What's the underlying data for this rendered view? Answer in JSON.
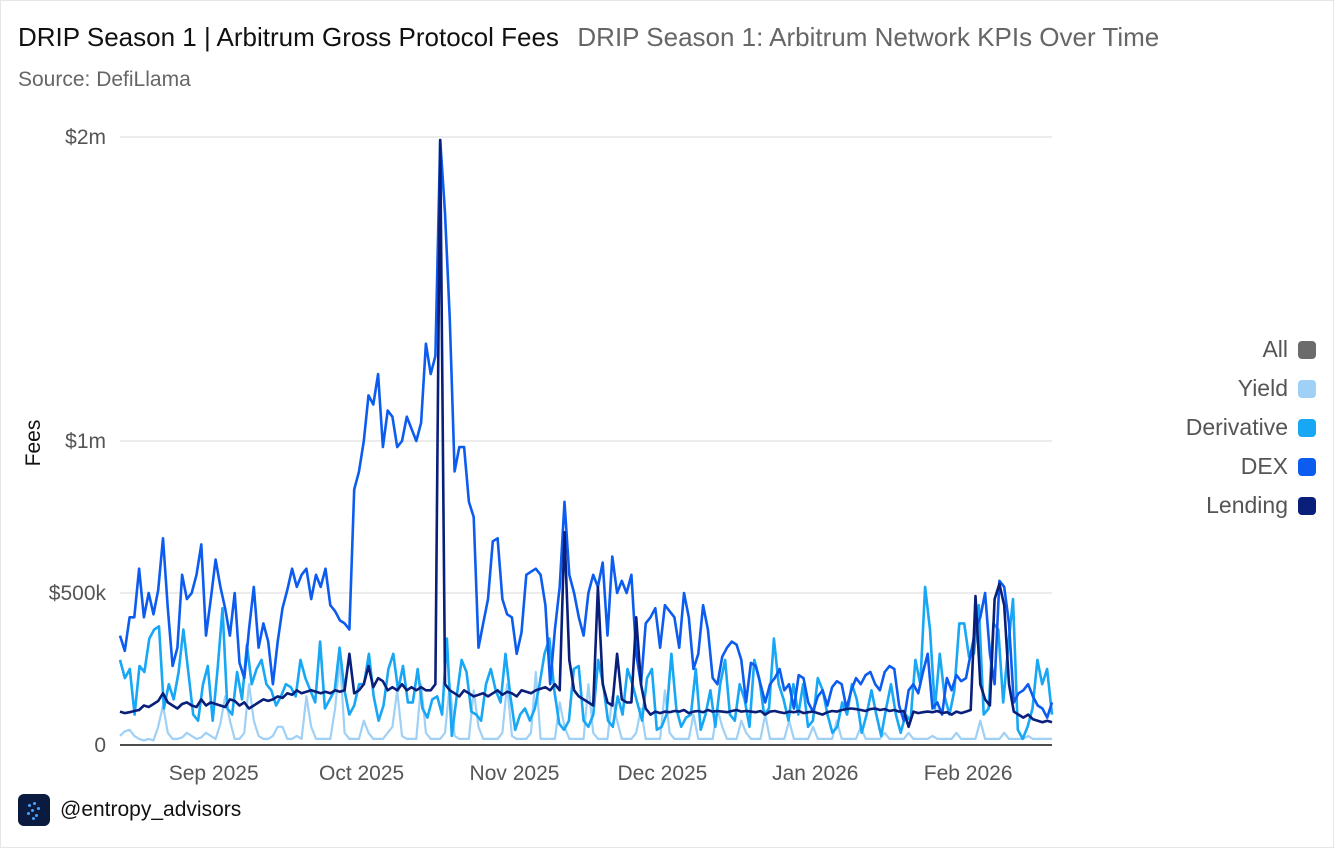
{
  "header": {
    "title": "DRIP Season 1 | Arbitrum Gross Protocol Fees",
    "subtitle": "DRIP Season 1: Arbitrum Network KPIs Over Time",
    "source": "Source: DefiLlama"
  },
  "footer": {
    "handle": "@entropy_advisors"
  },
  "colors": {
    "All": "#6b6b6b",
    "Yield": "#9fd0f5",
    "Derivative": "#17a7f5",
    "DEX": "#0d5cf0",
    "Lending": "#0a1f7a"
  },
  "chart_data": {
    "type": "line",
    "title": "DRIP Season 1 | Arbitrum Gross Protocol Fees",
    "xlabel": "",
    "ylabel": "Fees",
    "ylim": [
      0,
      2000000
    ],
    "yticks": [
      0,
      500000,
      1000000,
      2000000
    ],
    "ytick_labels": [
      "0",
      "$500k",
      "$1m",
      "$2m"
    ],
    "xticks": [
      "Sep 2025",
      "Oct 2025",
      "Nov 2025",
      "Dec 2025",
      "Jan 2026",
      "Feb 2026"
    ],
    "date_range": [
      "2025-08-13",
      "2026-02-18"
    ],
    "legend": [
      "All",
      "Yield",
      "Derivative",
      "DEX",
      "Lending"
    ],
    "legend_position": "right",
    "series": [
      {
        "name": "All",
        "values": []
      },
      {
        "name": "DEX",
        "values": [
          360000,
          310000,
          420000,
          420000,
          580000,
          420000,
          500000,
          430000,
          510000,
          680000,
          450000,
          260000,
          320000,
          560000,
          480000,
          500000,
          560000,
          660000,
          360000,
          480000,
          610000,
          520000,
          450000,
          360000,
          500000,
          270000,
          220000,
          380000,
          520000,
          320000,
          400000,
          340000,
          200000,
          340000,
          450000,
          510000,
          580000,
          520000,
          560000,
          580000,
          480000,
          560000,
          520000,
          580000,
          460000,
          440000,
          410000,
          400000,
          380000,
          840000,
          900000,
          1000000,
          1150000,
          1120000,
          1220000,
          980000,
          1100000,
          1080000,
          980000,
          1000000,
          1080000,
          1040000,
          1000000,
          1060000,
          1320000,
          1220000,
          1280000,
          2000000,
          1750000,
          1400000,
          900000,
          980000,
          980000,
          800000,
          750000,
          320000,
          400000,
          480000,
          670000,
          680000,
          480000,
          430000,
          420000,
          300000,
          370000,
          560000,
          570000,
          580000,
          560000,
          460000,
          200000,
          380000,
          520000,
          800000,
          560000,
          500000,
          420000,
          360000,
          500000,
          560000,
          520000,
          600000,
          360000,
          620000,
          500000,
          540000,
          500000,
          560000,
          300000,
          200000,
          400000,
          420000,
          450000,
          320000,
          460000,
          440000,
          420000,
          320000,
          500000,
          420000,
          250000,
          300000,
          460000,
          380000,
          220000,
          200000,
          290000,
          320000,
          340000,
          330000,
          280000,
          140000,
          270000,
          260000,
          200000,
          140000,
          200000,
          220000,
          250000,
          180000,
          200000,
          120000,
          230000,
          220000,
          140000,
          110000,
          160000,
          180000,
          130000,
          190000,
          210000,
          200000,
          120000,
          180000,
          220000,
          200000,
          230000,
          240000,
          200000,
          180000,
          240000,
          260000,
          250000,
          130000,
          80000,
          180000,
          200000,
          170000,
          240000,
          300000,
          120000,
          140000,
          100000,
          220000,
          180000,
          230000,
          210000,
          220000,
          300000,
          380000,
          420000,
          500000,
          300000,
          200000,
          540000,
          520000,
          400000,
          140000,
          170000,
          180000,
          200000,
          160000,
          130000,
          120000,
          90000,
          140000
        ]
      },
      {
        "name": "Lending",
        "values": [
          110000,
          105000,
          108000,
          112000,
          115000,
          130000,
          125000,
          135000,
          145000,
          170000,
          140000,
          130000,
          120000,
          135000,
          140000,
          130000,
          125000,
          150000,
          130000,
          140000,
          135000,
          130000,
          125000,
          150000,
          145000,
          130000,
          140000,
          120000,
          130000,
          140000,
          150000,
          145000,
          150000,
          160000,
          155000,
          170000,
          165000,
          180000,
          170000,
          175000,
          180000,
          175000,
          170000,
          175000,
          170000,
          180000,
          175000,
          180000,
          300000,
          170000,
          180000,
          200000,
          260000,
          190000,
          220000,
          210000,
          180000,
          190000,
          180000,
          200000,
          180000,
          190000,
          180000,
          190000,
          180000,
          180000,
          200000,
          2000000,
          200000,
          180000,
          170000,
          160000,
          180000,
          170000,
          160000,
          165000,
          170000,
          160000,
          170000,
          180000,
          165000,
          175000,
          170000,
          160000,
          180000,
          175000,
          170000,
          180000,
          185000,
          190000,
          180000,
          200000,
          180000,
          700000,
          280000,
          180000,
          160000,
          150000,
          140000,
          130000,
          520000,
          200000,
          140000,
          130000,
          300000,
          150000,
          140000,
          140000,
          420000,
          200000,
          120000,
          100000,
          110000,
          105000,
          110000,
          108000,
          112000,
          110000,
          115000,
          105000,
          110000,
          112000,
          108000,
          115000,
          110000,
          112000,
          110000,
          108000,
          112000,
          115000,
          110000,
          112000,
          110000,
          108000,
          112000,
          100000,
          110000,
          112000,
          108000,
          105000,
          110000,
          108000,
          112000,
          105000,
          108000,
          110000,
          105000,
          100000,
          108000,
          112000,
          110000,
          115000,
          118000,
          120000,
          118000,
          115000,
          112000,
          118000,
          120000,
          115000,
          118000,
          112000,
          115000,
          110000,
          112000,
          60000,
          110000,
          105000,
          108000,
          110000,
          108000,
          112000,
          105000,
          108000,
          100000,
          110000,
          105000,
          110000,
          115000,
          490000,
          200000,
          150000,
          130000,
          480000,
          530000,
          460000,
          200000,
          110000,
          100000,
          90000,
          100000,
          85000,
          80000,
          75000,
          80000,
          75000
        ]
      },
      {
        "name": "Derivative",
        "values": [
          280000,
          220000,
          250000,
          100000,
          260000,
          240000,
          350000,
          380000,
          390000,
          120000,
          200000,
          150000,
          240000,
          380000,
          240000,
          100000,
          80000,
          200000,
          260000,
          80000,
          250000,
          450000,
          120000,
          100000,
          240000,
          150000,
          330000,
          200000,
          250000,
          280000,
          200000,
          180000,
          130000,
          160000,
          200000,
          190000,
          160000,
          280000,
          220000,
          180000,
          140000,
          340000,
          120000,
          150000,
          180000,
          320000,
          180000,
          100000,
          130000,
          200000,
          200000,
          300000,
          160000,
          80000,
          130000,
          250000,
          300000,
          180000,
          260000,
          140000,
          140000,
          250000,
          120000,
          90000,
          150000,
          160000,
          100000,
          350000,
          30000,
          160000,
          280000,
          240000,
          110000,
          100000,
          80000,
          200000,
          250000,
          180000,
          140000,
          300000,
          160000,
          50000,
          100000,
          120000,
          80000,
          120000,
          200000,
          300000,
          350000,
          180000,
          70000,
          50000,
          80000,
          250000,
          260000,
          80000,
          60000,
          100000,
          280000,
          200000,
          80000,
          60000,
          160000,
          100000,
          250000,
          200000,
          140000,
          80000,
          220000,
          250000,
          50000,
          60000,
          100000,
          300000,
          120000,
          60000,
          90000,
          100000,
          250000,
          50000,
          100000,
          180000,
          60000,
          200000,
          280000,
          100000,
          80000,
          200000,
          150000,
          60000,
          280000,
          220000,
          100000,
          120000,
          350000,
          200000,
          150000,
          80000,
          200000,
          100000,
          200000,
          60000,
          80000,
          220000,
          180000,
          100000,
          40000,
          60000,
          140000,
          100000,
          200000,
          150000,
          40000,
          100000,
          180000,
          100000,
          30000,
          120000,
          200000,
          100000,
          40000,
          100000,
          80000,
          280000,
          200000,
          520000,
          380000,
          120000,
          300000,
          160000,
          100000,
          180000,
          400000,
          400000,
          290000,
          300000,
          460000,
          100000,
          120000,
          400000,
          380000,
          140000,
          320000,
          480000,
          50000,
          20000,
          60000,
          120000,
          280000,
          200000,
          250000,
          100000
        ]
      },
      {
        "name": "Yield",
        "values": [
          30000,
          45000,
          50000,
          30000,
          20000,
          15000,
          20000,
          15000,
          60000,
          130000,
          40000,
          20000,
          20000,
          25000,
          40000,
          30000,
          20000,
          25000,
          40000,
          30000,
          20000,
          70000,
          160000,
          80000,
          20000,
          20000,
          40000,
          200000,
          80000,
          30000,
          20000,
          20000,
          30000,
          60000,
          60000,
          20000,
          20000,
          30000,
          20000,
          160000,
          60000,
          20000,
          20000,
          20000,
          20000,
          120000,
          280000,
          40000,
          20000,
          20000,
          20000,
          80000,
          40000,
          20000,
          20000,
          20000,
          40000,
          60000,
          180000,
          30000,
          20000,
          20000,
          20000,
          200000,
          40000,
          20000,
          20000,
          20000,
          40000,
          200000,
          30000,
          20000,
          20000,
          20000,
          180000,
          60000,
          20000,
          20000,
          20000,
          20000,
          40000,
          200000,
          30000,
          20000,
          20000,
          20000,
          40000,
          240000,
          20000,
          20000,
          20000,
          20000,
          140000,
          60000,
          20000,
          20000,
          20000,
          20000,
          200000,
          40000,
          20000,
          20000,
          20000,
          160000,
          80000,
          20000,
          20000,
          20000,
          40000,
          120000,
          20000,
          20000,
          20000,
          20000,
          180000,
          40000,
          20000,
          20000,
          20000,
          20000,
          100000,
          20000,
          20000,
          20000,
          20000,
          120000,
          60000,
          20000,
          20000,
          20000,
          80000,
          40000,
          20000,
          20000,
          20000,
          100000,
          20000,
          20000,
          20000,
          20000,
          80000,
          20000,
          20000,
          20000,
          20000,
          60000,
          20000,
          20000,
          20000,
          20000,
          80000,
          20000,
          20000,
          20000,
          20000,
          60000,
          20000,
          20000,
          20000,
          20000,
          40000,
          20000,
          20000,
          20000,
          20000,
          40000,
          20000,
          20000,
          20000,
          20000,
          30000,
          20000,
          20000,
          20000,
          20000,
          40000,
          20000,
          20000,
          20000,
          20000,
          80000,
          20000,
          20000,
          20000,
          20000,
          40000,
          20000,
          20000,
          20000,
          20000,
          30000,
          20000,
          20000,
          20000,
          20000,
          20000
        ]
      }
    ]
  }
}
